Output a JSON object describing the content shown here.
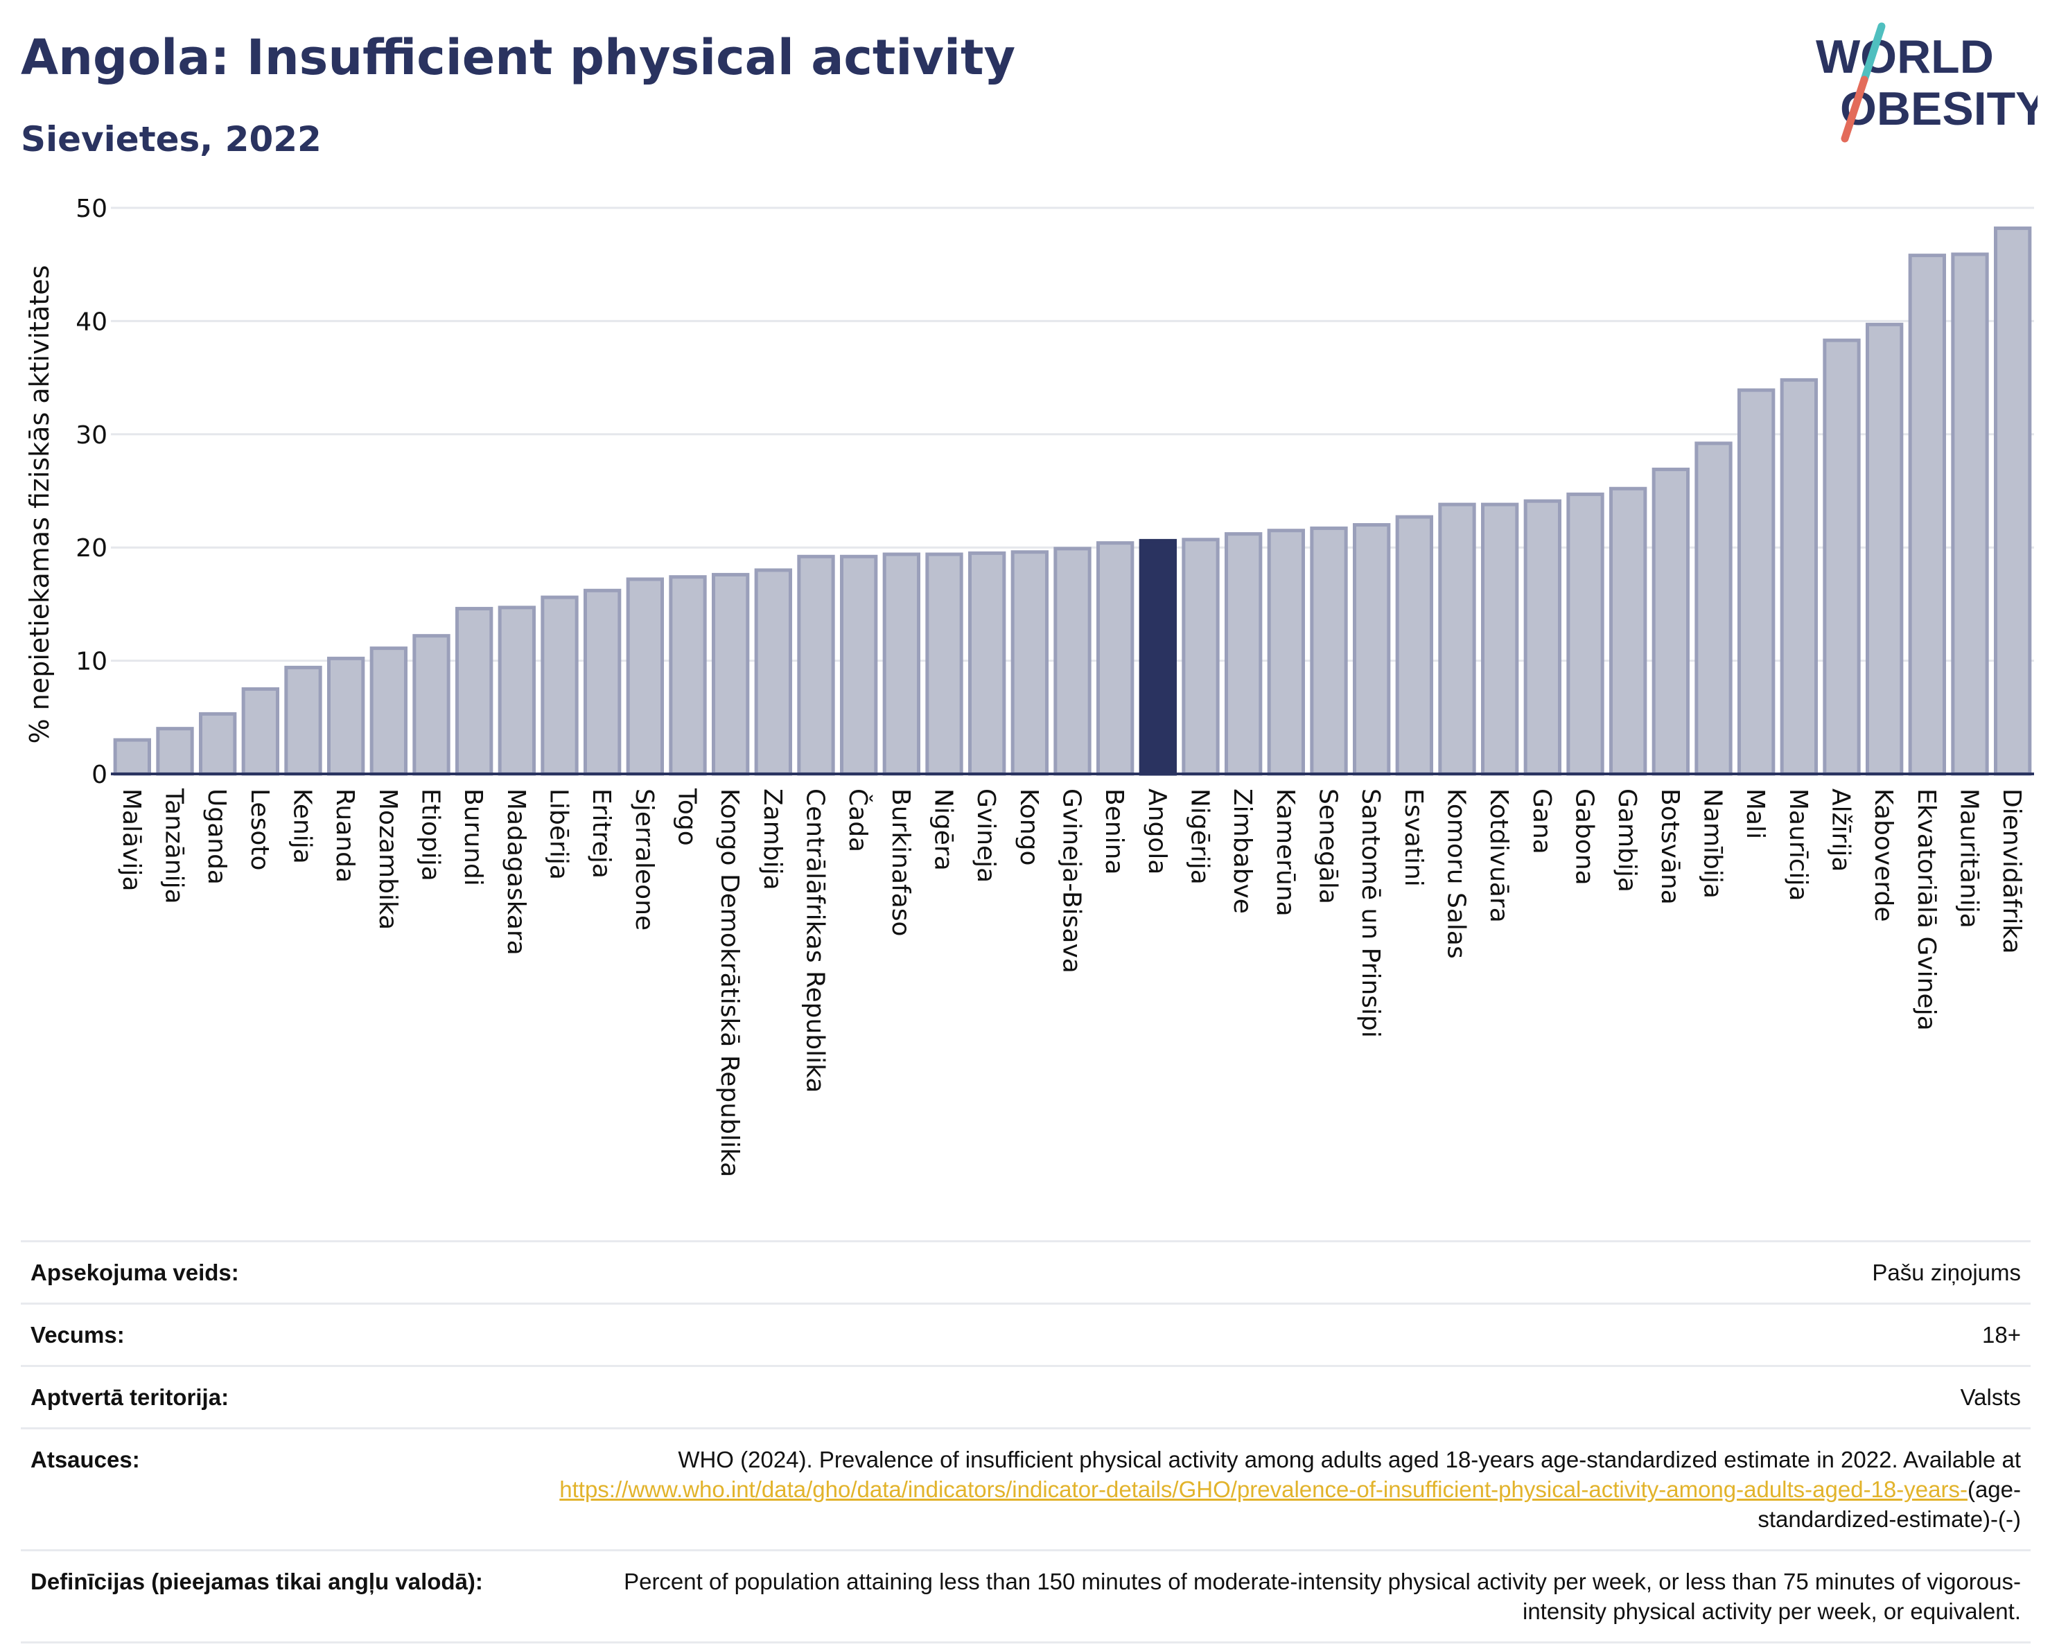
{
  "header": {
    "title": "Angola: Insufficient physical activity",
    "subtitle": "Sievietes, 2022"
  },
  "logo": {
    "line1": "WORLD",
    "line2": "OBESITY",
    "text_color": "#2a3360",
    "slash_colors": [
      "#4fbfbf",
      "#e36b5a"
    ]
  },
  "colors": {
    "bar": "#bcc0cf",
    "bar_edge": "#9a9fba",
    "highlight": "#2a3360",
    "grid": "#e5e7ec",
    "axis": "#2a3360"
  },
  "chart_data": {
    "type": "bar",
    "ylabel": "% nepietiekamas fiziskās aktivitātes",
    "ylim": [
      0,
      50
    ],
    "yticks": [
      0,
      10,
      20,
      30,
      40,
      50
    ],
    "highlight": "Angola",
    "categories": [
      "Malāvija",
      "Tanzānija",
      "Uganda",
      "Lesoto",
      "Kenija",
      "Ruanda",
      "Mozambika",
      "Etiopija",
      "Burundi",
      "Madagaskara",
      "Libērija",
      "Eritreja",
      "Sjerraleone",
      "Togo",
      "Kongo Demokrātiskā Republika",
      "Zambija",
      "Centrālāfrikas Republika",
      "Čada",
      "Burkinafaso",
      "Nigēra",
      "Gvineja",
      "Kongo",
      "Gvineja-Bisava",
      "Benina",
      "Angola",
      "Nigērija",
      "Zimbabve",
      "Kamerūna",
      "Senegāla",
      "Santomē un Prinsipi",
      "Esvatini",
      "Komoru Salas",
      "Kotdivuāra",
      "Gana",
      "Gabona",
      "Gambija",
      "Botsvāna",
      "Namībija",
      "Mali",
      "Maurīcija",
      "Alžīrija",
      "Kaboverde",
      "Ekvatoriālā Gvineja",
      "Mauritānija",
      "Dienvidāfrika"
    ],
    "values": [
      3.0,
      4.0,
      5.3,
      7.5,
      9.4,
      10.2,
      11.1,
      12.2,
      14.6,
      14.7,
      15.6,
      16.2,
      17.2,
      17.4,
      17.6,
      18.0,
      19.2,
      19.2,
      19.4,
      19.4,
      19.5,
      19.6,
      19.9,
      20.4,
      20.6,
      20.7,
      21.2,
      21.5,
      21.7,
      22.0,
      22.7,
      23.8,
      23.8,
      24.1,
      24.7,
      25.2,
      26.9,
      29.2,
      33.9,
      34.8,
      38.3,
      39.7,
      45.8,
      45.9,
      48.2
    ]
  },
  "info": {
    "rows": [
      {
        "label": "Apsekojuma veids:",
        "value": "Pašu ziņojums"
      },
      {
        "label": "Vecums:",
        "value": "18+"
      },
      {
        "label": "Aptvertā teritorija:",
        "value": "Valsts"
      }
    ],
    "sources": {
      "label": "Atsauces:",
      "text": "WHO (2024). Prevalence of insufficient physical activity among adults aged 18-years age-standardized estimate in 2022. Available at",
      "link_text": "https://www.who.int/data/gho/data/indicators/indicator-details/GHO/prevalence-of-insufficient-physical-activity-among-adults-aged-18-years-",
      "link_suffix": "(age-standardized-estimate)-(-)"
    },
    "definitions": {
      "label": "Definīcijas (pieejamas tikai angļu valodā):",
      "value": "Percent of population attaining less than 150 minutes of moderate-intensity physical activity per week, or less than 75 minutes of vigorous-intensity physical activity per week, or equivalent."
    }
  }
}
